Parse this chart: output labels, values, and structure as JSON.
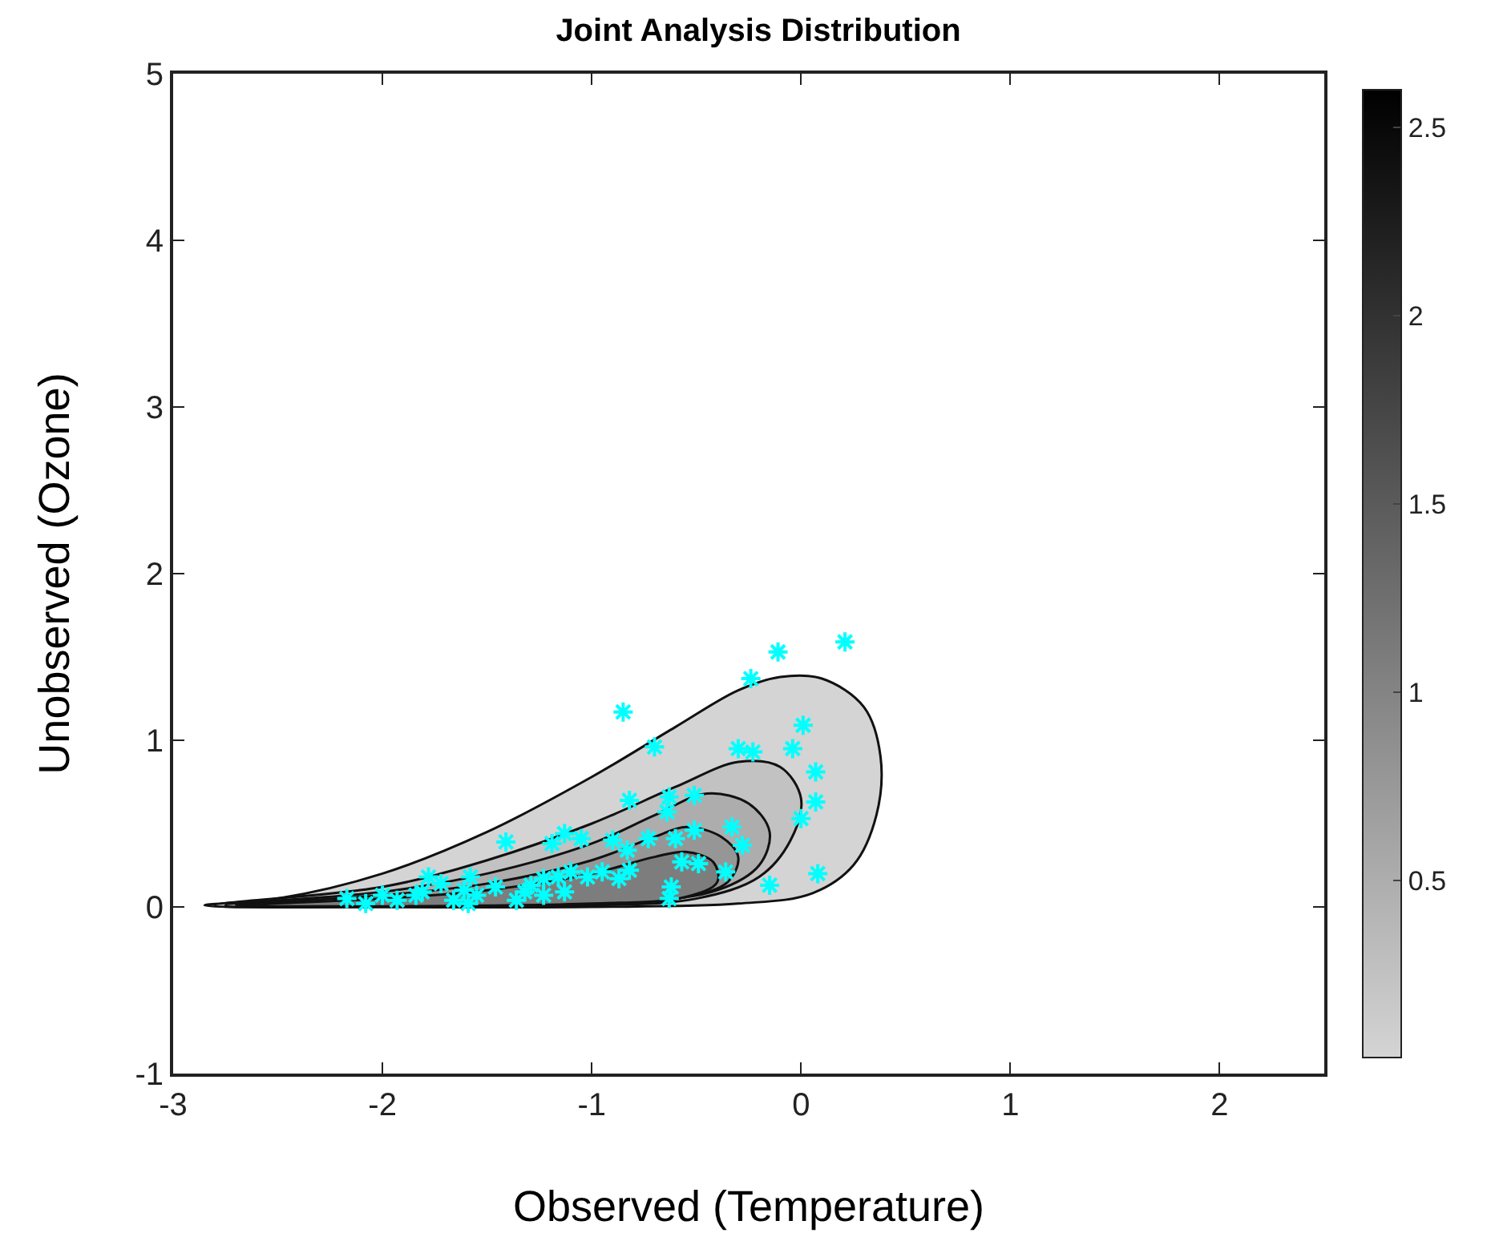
{
  "chart_data": {
    "type": "scatter",
    "title": "Joint Analysis Distribution",
    "xlabel": "Observed (Temperature)",
    "ylabel": "Unobserved (Ozone)",
    "xlim": [
      -3,
      2.5
    ],
    "xticks": [
      -3,
      -2,
      -1,
      0,
      1,
      2
    ],
    "ylim": [
      -1,
      5
    ],
    "yticks": [
      -1,
      0,
      1,
      2,
      3,
      4,
      5
    ],
    "clim": [
      0.03,
      2.6
    ],
    "cticks": [
      0.5,
      1,
      1.5,
      2,
      2.5
    ],
    "grid": false,
    "series": [
      {
        "type": "area",
        "color": "#d4d4d4",
        "x": [
          -2.85,
          -2.5,
          -2,
          -1.5,
          -1,
          -0.6,
          -0.3,
          -0.1,
          0.1,
          0.3,
          0.38,
          0.36,
          0.25,
          0.05,
          -0.3,
          -1,
          -2,
          -2.85
        ],
        "values": [
          0.01,
          0.05,
          0.2,
          0.45,
          0.78,
          1.08,
          1.3,
          1.38,
          1.37,
          1.2,
          0.9,
          0.55,
          0.25,
          0.08,
          0.02,
          0,
          0,
          0.01
        ]
      },
      {
        "type": "area",
        "color": "#c2c2c2",
        "x": [
          -2.8,
          -2,
          -1.5,
          -1,
          -0.6,
          -0.3,
          -0.1,
          0,
          -0.05,
          -0.2,
          -0.5,
          -1,
          -2,
          -2.8
        ],
        "values": [
          0.01,
          0.12,
          0.28,
          0.5,
          0.72,
          0.87,
          0.84,
          0.65,
          0.4,
          0.18,
          0.05,
          0.01,
          0,
          0.01
        ]
      },
      {
        "type": "area",
        "color": "#adadad",
        "x": [
          -2.75,
          -2,
          -1.5,
          -1,
          -0.7,
          -0.45,
          -0.25,
          -0.15,
          -0.2,
          -0.4,
          -0.8,
          -1.5,
          -2.75
        ],
        "values": [
          0.01,
          0.09,
          0.2,
          0.38,
          0.55,
          0.68,
          0.62,
          0.45,
          0.25,
          0.1,
          0.03,
          0.01,
          0.01
        ]
      },
      {
        "type": "area",
        "color": "#969696",
        "x": [
          -2.7,
          -2,
          -1.5,
          -1,
          -0.7,
          -0.55,
          -0.38,
          -0.3,
          -0.35,
          -0.55,
          -1,
          -2.7
        ],
        "values": [
          0.01,
          0.07,
          0.14,
          0.28,
          0.42,
          0.48,
          0.42,
          0.3,
          0.15,
          0.06,
          0.02,
          0.01
        ]
      },
      {
        "type": "area",
        "color": "#7d7d7d",
        "x": [
          -2.65,
          -2,
          -1.5,
          -1,
          -0.7,
          -0.55,
          -0.42,
          -0.4,
          -0.55,
          -1,
          -2.65
        ],
        "values": [
          0.01,
          0.05,
          0.1,
          0.2,
          0.3,
          0.33,
          0.27,
          0.15,
          0.06,
          0.02,
          0.01
        ]
      },
      {
        "type": "scatter",
        "marker": "cross",
        "color": "#00ffff",
        "x": [
          0.21,
          -0.11,
          -0.24,
          -0.85,
          -0.7,
          -0.3,
          0.01,
          -0.04,
          0.07,
          0.07,
          0,
          -0.23,
          -0.82,
          0.08,
          -0.15,
          -0.28,
          -0.36,
          -0.33,
          -0.51,
          -0.51,
          -0.63,
          -0.64,
          -0.73,
          -0.83,
          -0.6,
          -0.49,
          -0.57,
          -0.62,
          -0.63,
          -0.9,
          -1.05,
          -1.13,
          -1.19,
          -1.41,
          -0.82,
          -0.87,
          -0.95,
          -1.02,
          -1.1,
          -1.16,
          -1.23,
          -1.29,
          -1.32,
          -1.36,
          -1.23,
          -1.13,
          -1.46,
          -1.58,
          -1.61,
          -1.66,
          -1.59,
          -1.72,
          -1.81,
          -1.93,
          -2.0,
          -2.08,
          -2.17,
          -1.84,
          -1.55,
          -1.78
        ],
        "values": [
          1.59,
          1.53,
          1.37,
          1.17,
          0.96,
          0.95,
          1.09,
          0.95,
          0.81,
          0.63,
          0.53,
          0.93,
          0.64,
          0.2,
          0.13,
          0.37,
          0.21,
          0.48,
          0.46,
          0.67,
          0.66,
          0.57,
          0.41,
          0.34,
          0.41,
          0.26,
          0.27,
          0.12,
          0.05,
          0.4,
          0.41,
          0.44,
          0.38,
          0.39,
          0.22,
          0.17,
          0.21,
          0.18,
          0.21,
          0.18,
          0.17,
          0.13,
          0.09,
          0.04,
          0.07,
          0.09,
          0.12,
          0.18,
          0.1,
          0.04,
          0.02,
          0.14,
          0.09,
          0.04,
          0.07,
          0.02,
          0.05,
          0.07,
          0.07,
          0.18
        ]
      }
    ]
  }
}
